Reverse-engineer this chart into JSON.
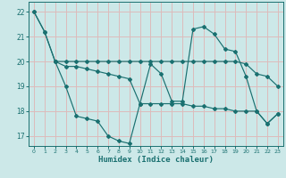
{
  "xlabel": "Humidex (Indice chaleur)",
  "xlim": [
    -0.5,
    23.5
  ],
  "ylim": [
    16.6,
    22.4
  ],
  "yticks": [
    17,
    18,
    19,
    20,
    21,
    22
  ],
  "xticks": [
    0,
    1,
    2,
    3,
    4,
    5,
    6,
    7,
    8,
    9,
    10,
    11,
    12,
    13,
    14,
    15,
    16,
    17,
    18,
    19,
    20,
    21,
    22,
    23
  ],
  "bg_color": "#cce8e8",
  "line_color": "#1a7070",
  "grid_color": "#ddbbbb",
  "lines": [
    {
      "x": [
        0,
        1,
        2,
        3,
        4,
        5,
        6,
        7,
        8,
        9,
        10,
        11,
        12,
        13,
        14,
        15,
        16,
        17,
        18,
        19,
        20,
        21,
        22,
        23
      ],
      "y": [
        22.0,
        21.2,
        20.0,
        20.0,
        20.0,
        20.0,
        20.0,
        20.0,
        20.0,
        20.0,
        20.0,
        20.0,
        20.0,
        20.0,
        20.0,
        20.0,
        20.0,
        20.0,
        20.0,
        20.0,
        19.9,
        19.5,
        19.4,
        19.0
      ]
    },
    {
      "x": [
        0,
        1,
        2,
        3,
        4,
        5,
        6,
        7,
        8,
        9,
        10,
        11,
        12,
        13,
        14,
        15,
        16,
        17,
        18,
        19,
        20,
        21,
        22,
        23
      ],
      "y": [
        22.0,
        21.2,
        20.0,
        19.0,
        17.8,
        17.7,
        17.6,
        17.0,
        16.8,
        16.7,
        18.3,
        19.9,
        19.5,
        18.4,
        18.4,
        21.3,
        21.4,
        21.1,
        20.5,
        20.4,
        19.4,
        18.0,
        17.5,
        17.9
      ]
    },
    {
      "x": [
        2,
        3,
        4,
        5,
        6,
        7,
        8,
        9,
        10,
        11,
        12,
        13,
        14,
        15,
        16,
        17,
        18,
        19,
        20,
        21,
        22,
        23
      ],
      "y": [
        20.0,
        19.8,
        19.8,
        19.7,
        19.6,
        19.5,
        19.4,
        19.3,
        18.3,
        18.3,
        18.3,
        18.3,
        18.3,
        18.2,
        18.2,
        18.1,
        18.1,
        18.0,
        18.0,
        18.0,
        17.5,
        17.9
      ]
    }
  ]
}
